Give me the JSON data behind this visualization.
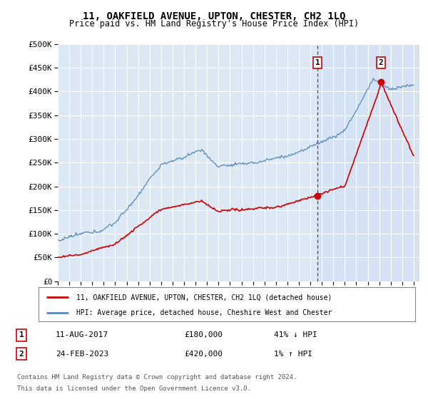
{
  "title": "11, OAKFIELD AVENUE, UPTON, CHESTER, CH2 1LQ",
  "subtitle": "Price paid vs. HM Land Registry's House Price Index (HPI)",
  "ytick_vals": [
    0,
    50000,
    100000,
    150000,
    200000,
    250000,
    300000,
    350000,
    400000,
    450000,
    500000
  ],
  "hpi_color": "#5588bb",
  "price_color": "#cc0000",
  "marker1_date": 2017.62,
  "marker1_price": 180000,
  "marker2_date": 2023.15,
  "marker2_price": 420000,
  "vline1_x": 2017.62,
  "vline2_x": 2023.15,
  "shade_color": "#dde8f5",
  "bg_color": "#dde8f5",
  "grid_color": "#cccccc",
  "legend_line1": "11, OAKFIELD AVENUE, UPTON, CHESTER, CH2 1LQ (detached house)",
  "legend_line2": "HPI: Average price, detached house, Cheshire West and Chester",
  "xlim_start": 1995,
  "xlim_end": 2026.5
}
